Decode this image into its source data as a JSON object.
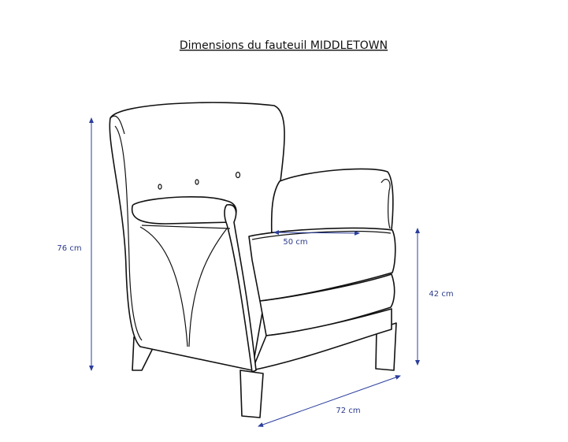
{
  "title": "Dimensions du fauteuil MIDDLETOWN",
  "dimensions": [
    {
      "label": "76 cm"
    },
    {
      "label": "50 cm"
    },
    {
      "label": "42 cm"
    },
    {
      "label": "72 cm"
    }
  ]
}
